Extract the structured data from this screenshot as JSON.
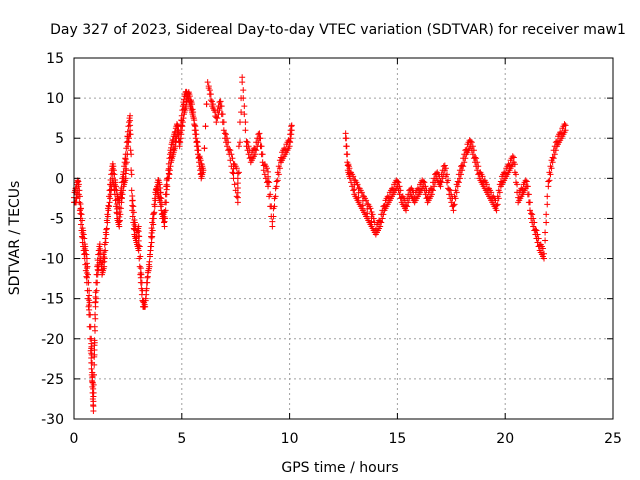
{
  "chart_data": {
    "type": "scatter",
    "title": "Day 327 of 2023, Sidereal Day-to-day VTEC variation (SDTVAR) for receiver maw1",
    "xlabel": "GPS time / hours",
    "ylabel": "SDTVAR / TECUs",
    "xlim": [
      0,
      25
    ],
    "ylim": [
      -30,
      15
    ],
    "xticks": [
      0,
      5,
      10,
      15,
      20,
      25
    ],
    "yticks": [
      -30,
      -25,
      -20,
      -15,
      -10,
      -5,
      0,
      5,
      10,
      15
    ],
    "grid": true,
    "marker": "+",
    "color": "#ff0000",
    "series": [
      {
        "name": "SDTVAR",
        "x": [
          0.0,
          0.1,
          0.2,
          0.3,
          0.4,
          0.5,
          0.6,
          0.7,
          0.8,
          0.85,
          0.9,
          0.95,
          1.0,
          1.1,
          1.2,
          1.3,
          1.4,
          1.5,
          1.6,
          1.7,
          1.8,
          1.9,
          2.0,
          2.1,
          2.2,
          2.3,
          2.4,
          2.5,
          2.6,
          2.7,
          2.8,
          2.9,
          3.0,
          3.1,
          3.2,
          3.3,
          3.4,
          3.5,
          3.6,
          3.7,
          3.8,
          3.9,
          4.0,
          4.1,
          4.2,
          4.3,
          4.4,
          4.5,
          4.6,
          4.7,
          4.8,
          4.9,
          5.0,
          5.1,
          5.2,
          5.3,
          5.4,
          5.5,
          5.6,
          5.7,
          5.8,
          5.9,
          6.0,
          6.2,
          6.4,
          6.6,
          6.8,
          7.0,
          7.2,
          7.4,
          7.6,
          7.8,
          8.0,
          8.2,
          8.4,
          8.6,
          8.8,
          9.0,
          9.2,
          9.4,
          9.6,
          9.8,
          10.0,
          10.1,
          12.6,
          12.7,
          12.8,
          13.0,
          13.2,
          13.4,
          13.6,
          13.8,
          14.0,
          14.2,
          14.4,
          14.6,
          14.8,
          15.0,
          15.2,
          15.4,
          15.6,
          15.8,
          16.0,
          16.2,
          16.4,
          16.6,
          16.8,
          17.0,
          17.2,
          17.4,
          17.6,
          17.8,
          18.0,
          18.2,
          18.4,
          18.6,
          18.8,
          19.0,
          19.2,
          19.4,
          19.6,
          19.8,
          20.0,
          20.2,
          20.4,
          20.6,
          20.8,
          21.0,
          21.2,
          21.4,
          21.6,
          21.8,
          22.0,
          22.2,
          22.4,
          22.6,
          22.8
        ],
        "y": [
          -2,
          -1,
          0,
          -3,
          -6,
          -8,
          -10,
          -14,
          -20,
          -24,
          -27,
          -22,
          -16,
          -12,
          -10,
          -11,
          -9,
          -6,
          -3,
          0,
          2,
          0,
          -2,
          -3,
          -1,
          1,
          3,
          6,
          8,
          -2,
          -5,
          -7,
          -6,
          -11,
          -15,
          -16,
          -13,
          -10,
          -8,
          -5,
          -2,
          0,
          -1,
          -4,
          -6,
          -2,
          2,
          4,
          5,
          6,
          7,
          5,
          8,
          10,
          11,
          10,
          9,
          8,
          7,
          5,
          3,
          2,
          1,
          12,
          9,
          8,
          10,
          6,
          4,
          2,
          1,
          13,
          5,
          3,
          4,
          6,
          2,
          1,
          -5,
          0,
          3,
          4,
          5,
          7,
          6,
          2,
          1,
          0,
          -1,
          -2,
          -3,
          -4,
          -6,
          -5,
          -3,
          -2,
          -1,
          0,
          -2,
          -3,
          -1,
          -2,
          -1,
          0,
          -2,
          -1,
          1,
          0,
          2,
          -1,
          -3,
          0,
          2,
          4,
          5,
          3,
          1,
          0,
          -1,
          -2,
          -3,
          0,
          1,
          2,
          3,
          -2,
          -1,
          0,
          -4,
          -6,
          -8,
          -9,
          0,
          3,
          5,
          6,
          7
        ],
        "y2": [
          -3,
          -3,
          -1,
          -5,
          -8,
          -10,
          -13,
          -17,
          -23,
          -26,
          -29,
          -20,
          -14,
          -10,
          -8,
          -12,
          -11,
          -7,
          -4,
          -2,
          0,
          -2,
          -5,
          -6,
          -3,
          -1,
          0,
          4,
          6,
          -4,
          -7,
          -8,
          -9,
          -13,
          -16,
          -16,
          -12,
          -11,
          -6,
          -4,
          -1,
          -2,
          -3,
          -5,
          -4,
          0,
          0,
          2,
          3,
          4,
          6,
          4,
          6,
          8,
          9,
          11,
          10,
          9,
          6,
          4,
          2,
          0,
          1,
          12,
          10,
          7,
          9,
          5,
          3,
          0,
          -3,
          12,
          4,
          2,
          3,
          5,
          1,
          -1,
          -6,
          -1,
          2,
          3,
          4,
          6,
          5,
          1,
          0,
          -2,
          -3,
          -4,
          -5,
          -6,
          -7,
          -6,
          -4,
          -3,
          -2,
          -1,
          -3,
          -4,
          -2,
          -3,
          -2,
          -1,
          -3,
          -2,
          0,
          -1,
          1,
          -2,
          -4,
          -1,
          1,
          3,
          4,
          2,
          0,
          -1,
          -2,
          -3,
          -4,
          -1,
          0,
          1,
          2,
          -3,
          -2,
          -1,
          -5,
          -7,
          -9,
          -10,
          -1,
          2,
          4,
          5,
          6
        ]
      }
    ]
  }
}
